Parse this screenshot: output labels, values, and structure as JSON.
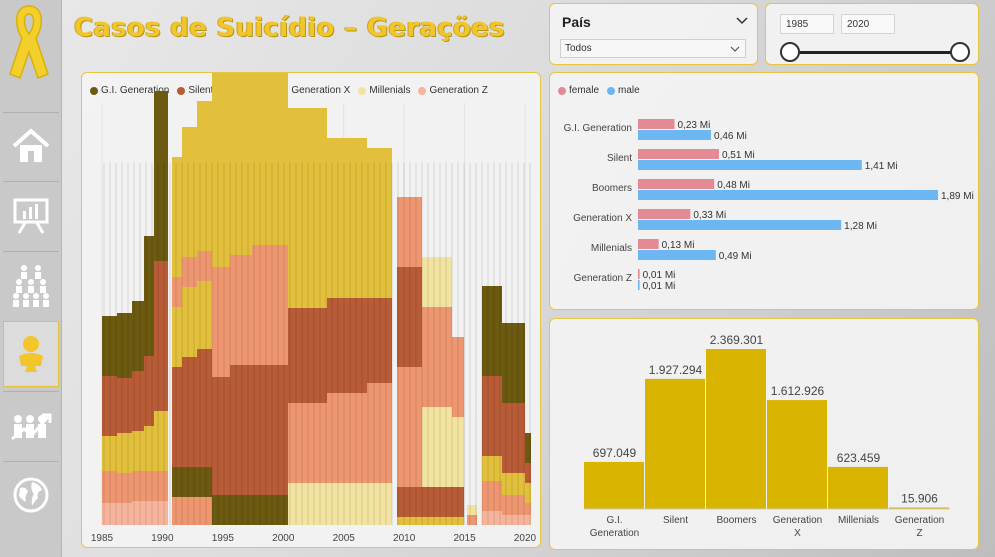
{
  "title": "Casos de Suicídio – Gerações",
  "colors": {
    "accent": "#f2c62a",
    "gi": "#6b5a10",
    "silent": "#b85c38",
    "boomers": "#e2c03c",
    "genx": "#ee9670",
    "millenials": "#f3e3a1",
    "genz": "#f6b49c",
    "female": "#e38a95",
    "male": "#6cb7f2",
    "total_bar": "#d9b400"
  },
  "nav": [
    {
      "icon": "home-icon"
    },
    {
      "icon": "presentation-chart-icon"
    },
    {
      "icon": "population-icon"
    },
    {
      "icon": "baby-icon"
    },
    {
      "icon": "growth-people-icon"
    },
    {
      "icon": "globe-icon"
    }
  ],
  "pais_slicer": {
    "label": "País",
    "selected": "Todos"
  },
  "year_slicer": {
    "from": "1985",
    "to": "2020"
  },
  "chart_data": [
    {
      "type": "area",
      "stacked": true,
      "x_ticks": [
        "1985",
        "1990",
        "1995",
        "2000",
        "2005",
        "2010",
        "2015",
        "2020"
      ],
      "series": [
        {
          "name": "G.I. Generation"
        },
        {
          "name": "Silent"
        },
        {
          "name": "Boomers"
        },
        {
          "name": "Generation X"
        },
        {
          "name": "Millenials"
        },
        {
          "name": "Generation Z"
        }
      ],
      "grid": true,
      "legend_position": "top-left"
    },
    {
      "type": "bar",
      "orientation": "horizontal",
      "categories": [
        "G.I. Generation",
        "Silent",
        "Boomers",
        "Generation X",
        "Millenials",
        "Generation Z"
      ],
      "series": [
        {
          "name": "female",
          "values": [
            0.23,
            0.51,
            0.48,
            0.33,
            0.13,
            0.01
          ],
          "labels": [
            "0,23 Mi",
            "0,51 Mi",
            "0,48 Mi",
            "0,33 Mi",
            "0,13 Mi",
            "0,01 Mi"
          ]
        },
        {
          "name": "male",
          "values": [
            0.46,
            1.41,
            1.89,
            1.28,
            0.49,
            0.01
          ],
          "labels": [
            "0,46 Mi",
            "1,41 Mi",
            "1,89 Mi",
            "1,28 Mi",
            "0,49 Mi",
            "0,01 Mi"
          ]
        }
      ],
      "legend_position": "top-left"
    },
    {
      "type": "bar",
      "categories": [
        "G.I. Generation",
        "Silent",
        "Boomers",
        "Generation X",
        "Millenials",
        "Generation Z"
      ],
      "values": [
        697049,
        1927294,
        2369301,
        1612926,
        623459,
        15906
      ],
      "labels": [
        "697.049",
        "1.927.294",
        "2.369.301",
        "1.612.926",
        "623.459",
        "15.906"
      ]
    }
  ]
}
